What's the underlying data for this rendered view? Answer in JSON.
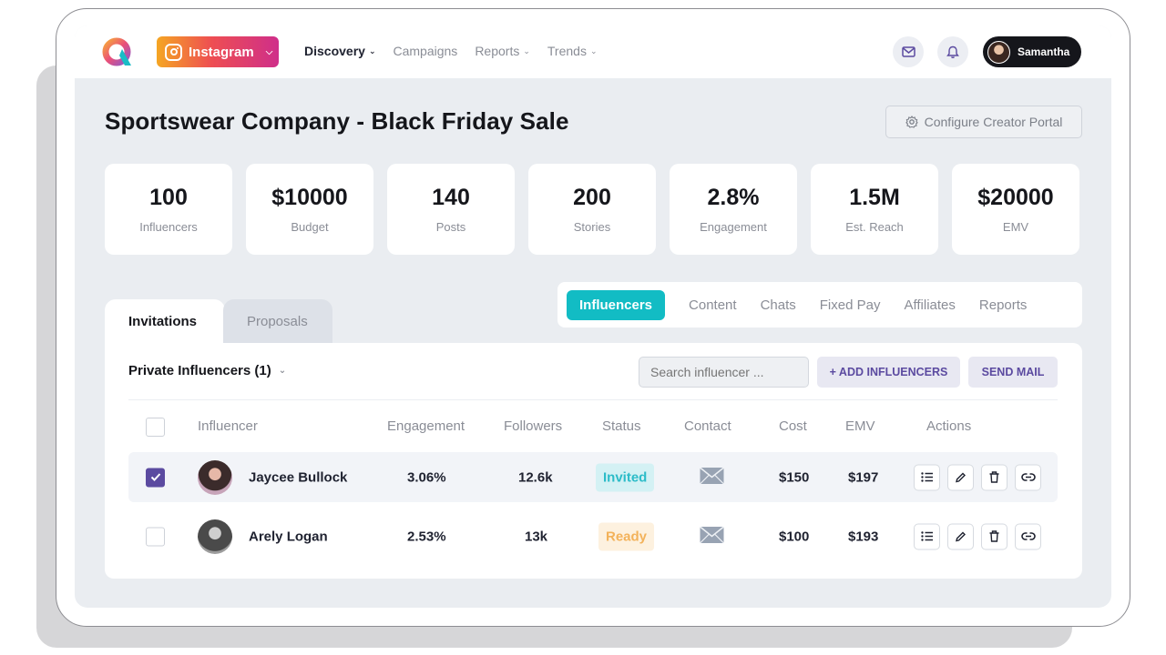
{
  "nav": {
    "platform": "Instagram",
    "items": [
      {
        "label": "Discovery",
        "active": true,
        "has_caret": true
      },
      {
        "label": "Campaigns",
        "active": false,
        "has_caret": false
      },
      {
        "label": "Reports",
        "active": false,
        "has_caret": true
      },
      {
        "label": "Trends",
        "active": false,
        "has_caret": true
      }
    ],
    "user_name": "Samantha"
  },
  "page": {
    "title": "Sportswear Company - Black Friday Sale",
    "config_button": "Configure Creator Portal"
  },
  "stats": [
    {
      "value": "100",
      "label": "Influencers"
    },
    {
      "value": "$10000",
      "label": "Budget"
    },
    {
      "value": "140",
      "label": "Posts"
    },
    {
      "value": "200",
      "label": "Stories"
    },
    {
      "value": "2.8%",
      "label": "Engagement"
    },
    {
      "value": "1.5M",
      "label": "Est. Reach"
    },
    {
      "value": "$20000",
      "label": "EMV"
    }
  ],
  "left_tabs": [
    "Invitations",
    "Proposals"
  ],
  "right_tabs": [
    "Influencers",
    "Content",
    "Chats",
    "Fixed Pay",
    "Affiliates",
    "Reports"
  ],
  "toolbar": {
    "filter_label": "Private Influencers (1)",
    "search_placeholder": "Search influencer ...",
    "add_button": "+ ADD INFLUENCERS",
    "mail_button": "SEND MAIL"
  },
  "table": {
    "headers": [
      "Influencer",
      "Engagement",
      "Followers",
      "Status",
      "Contact",
      "Cost",
      "EMV",
      "Actions"
    ],
    "rows": [
      {
        "name": "Jaycee Bullock",
        "engagement": "3.06%",
        "followers": "12.6k",
        "status": "Invited",
        "cost": "$150",
        "emv": "$197",
        "selected": true
      },
      {
        "name": "Arely Logan",
        "engagement": "2.53%",
        "followers": "13k",
        "status": "Ready",
        "cost": "$100",
        "emv": "$193",
        "selected": false
      }
    ]
  },
  "colors": {
    "accent_teal": "#12bcc4",
    "accent_purple": "#5b4aa0",
    "status_invited": "#2cbcc8",
    "status_ready": "#f3b25a"
  },
  "icons": [
    "app-logo-icon",
    "instagram-icon",
    "mail-icon",
    "bell-icon",
    "gear-icon",
    "envelope-icon",
    "list-icon",
    "pencil-icon",
    "trash-icon",
    "link-icon",
    "check-icon"
  ]
}
